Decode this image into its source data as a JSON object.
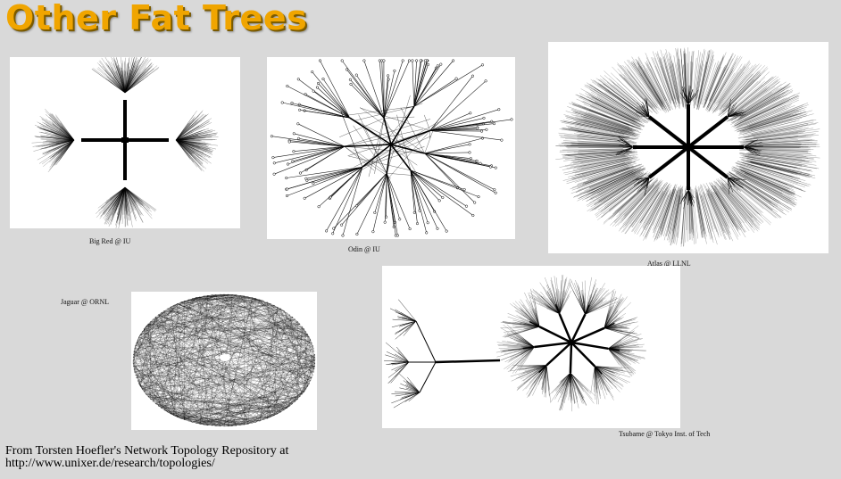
{
  "title": "Other Fat Trees",
  "figures": [
    {
      "id": "bigred",
      "caption": "Big Red @ IU"
    },
    {
      "id": "odin",
      "caption": "Odin @ IU"
    },
    {
      "id": "atlas",
      "caption": "Atlas @ LLNL"
    },
    {
      "id": "jaguar",
      "caption": "Jaguar @ ORNL"
    },
    {
      "id": "tsubame",
      "caption": "Tsubame @ Tokyo Inst. of Tech"
    }
  ],
  "footer": {
    "line1": "From Torsten Hoefler's Network Topology Repository at",
    "line2": "http://www.unixer.de/research/topologies/"
  },
  "colors": {
    "background": "#d9d9d9",
    "title": "#f0a500",
    "graph": "#000000"
  }
}
